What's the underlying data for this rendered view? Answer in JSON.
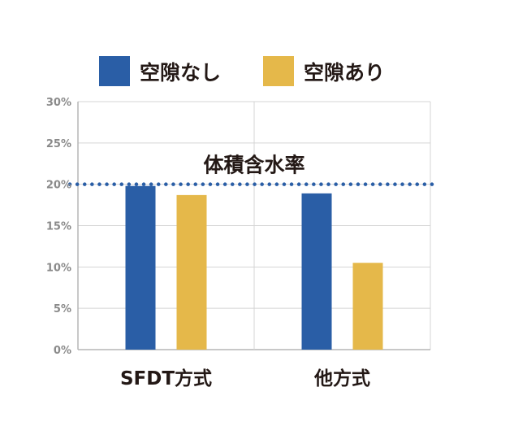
{
  "chart_data": {
    "type": "bar",
    "categories": [
      "SFDT方式",
      "他方式"
    ],
    "series": [
      {
        "name": "空隙なし",
        "values": [
          19.8,
          18.9
        ],
        "color": "#2a5ea6"
      },
      {
        "name": "空隙あり",
        "values": [
          18.7,
          10.5
        ],
        "color": "#e5b84a"
      }
    ],
    "ylim": [
      0,
      30
    ],
    "yticks": [
      0,
      5,
      10,
      15,
      20,
      25,
      30
    ],
    "ytick_labels": [
      "0%",
      "5%",
      "10%",
      "15%",
      "20%",
      "25%",
      "30%"
    ],
    "grid": true,
    "legend": "top",
    "reference_line": {
      "value": 20,
      "label": "体積含水率",
      "color": "#2a5ea6",
      "style": "dotted"
    }
  }
}
